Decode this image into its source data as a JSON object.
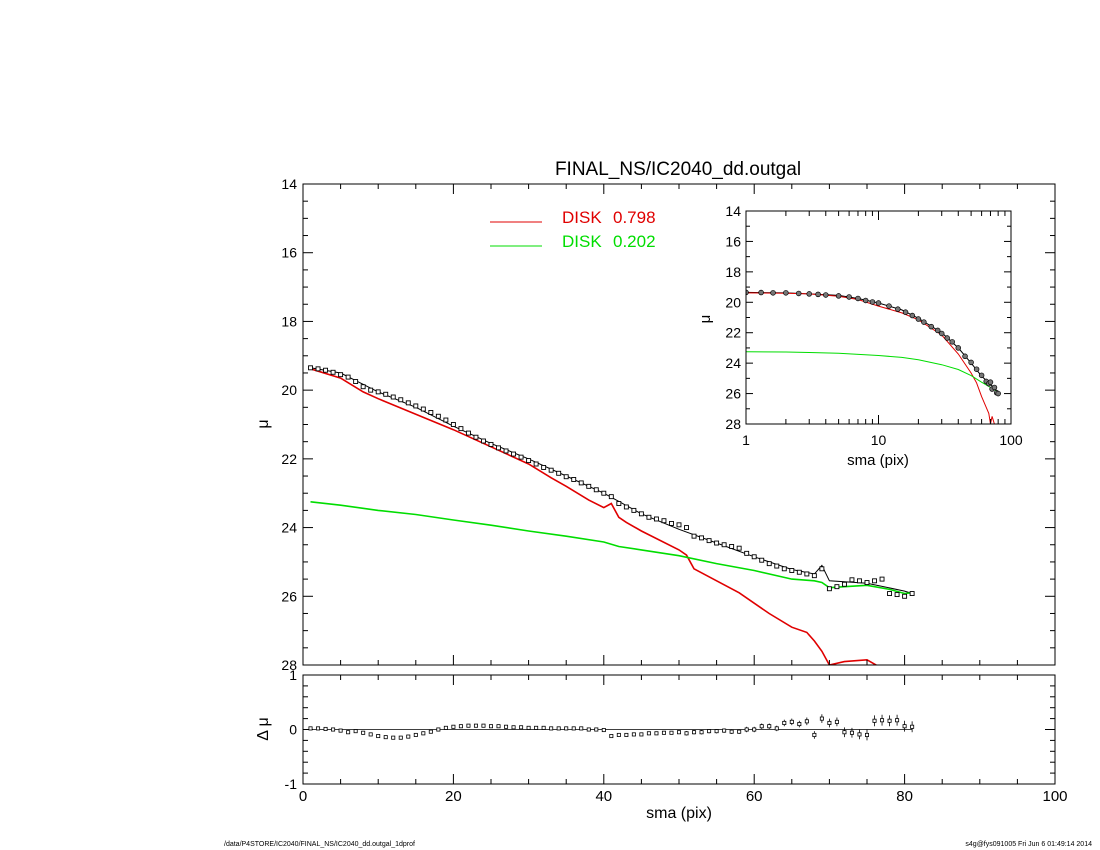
{
  "footer": {
    "path": "/data/P4STORE/IC2040/FINAL_NS/IC2040_dd.outgal_1dprof",
    "stamp": "s4g@fys091005  Fri Jun  6 01:49:14 2014"
  },
  "colors": {
    "total": "#000000",
    "disk1": "#e00000",
    "disk2": "#00dd00",
    "data_marker": "#000000"
  },
  "chart_data": [
    {
      "type": "line",
      "title": "FINAL_NS/IC2040_dd.outgal",
      "xlabel": "",
      "ylabel": "μ",
      "xlim": [
        0,
        100
      ],
      "ylim": [
        28,
        14
      ],
      "y_inverted": true,
      "xticks": [
        0,
        20,
        40,
        60,
        80,
        100
      ],
      "yticks": [
        14,
        16,
        18,
        20,
        22,
        24,
        26,
        28
      ],
      "legend": [
        {
          "label": "DISK",
          "value": "0.798",
          "color": "#e00000"
        },
        {
          "label": "DISK",
          "value": "0.202",
          "color": "#00dd00"
        }
      ],
      "legend_position": "top-center",
      "series": [
        {
          "name": "data",
          "style": "markers",
          "x": [
            1,
            2,
            3,
            4,
            5,
            6,
            7,
            8,
            9,
            10,
            11,
            12,
            13,
            14,
            15,
            16,
            17,
            18,
            19,
            20,
            21,
            22,
            23,
            24,
            25,
            26,
            27,
            28,
            29,
            30,
            31,
            32,
            33,
            34,
            35,
            36,
            37,
            38,
            39,
            40,
            41,
            42,
            43,
            44,
            45,
            46,
            47,
            48,
            49,
            50,
            51,
            52,
            53,
            54,
            55,
            56,
            57,
            58,
            59,
            60,
            61,
            62,
            63,
            64,
            65,
            66,
            67,
            68,
            69,
            70,
            71,
            72,
            73,
            74,
            75,
            76,
            77,
            78,
            79,
            80,
            81
          ],
          "y": [
            19.35,
            19.38,
            19.42,
            19.48,
            19.55,
            19.62,
            19.75,
            19.9,
            20.0,
            20.05,
            20.12,
            20.2,
            20.28,
            20.37,
            20.46,
            20.55,
            20.65,
            20.76,
            20.87,
            21.0,
            21.12,
            21.25,
            21.37,
            21.48,
            21.58,
            21.68,
            21.77,
            21.86,
            21.95,
            22.05,
            22.15,
            22.25,
            22.33,
            22.42,
            22.52,
            22.6,
            22.7,
            22.8,
            22.9,
            23.0,
            23.1,
            23.3,
            23.4,
            23.5,
            23.6,
            23.7,
            23.75,
            23.8,
            23.88,
            23.92,
            24.0,
            24.25,
            24.3,
            24.38,
            24.45,
            24.5,
            24.55,
            24.6,
            24.75,
            24.85,
            24.95,
            25.05,
            25.12,
            25.2,
            25.25,
            25.3,
            25.35,
            25.4,
            25.2,
            25.78,
            25.72,
            25.65,
            25.52,
            25.55,
            25.6,
            25.55,
            25.5,
            25.92,
            25.95,
            26.0,
            25.92
          ]
        },
        {
          "name": "total",
          "style": "line",
          "x": [
            1,
            5,
            10,
            15,
            20,
            25,
            30,
            35,
            40,
            45,
            50,
            55,
            60,
            65,
            68,
            69,
            70,
            75,
            80,
            81
          ],
          "y": [
            19.35,
            19.5,
            20.05,
            20.5,
            21.05,
            21.55,
            22.0,
            22.5,
            23.0,
            23.6,
            24.05,
            24.45,
            24.85,
            25.22,
            25.35,
            25.1,
            25.55,
            25.62,
            25.85,
            25.92
          ]
        },
        {
          "name": "disk1",
          "style": "line",
          "x": [
            1,
            5,
            8,
            10,
            15,
            20,
            25,
            30,
            33,
            35,
            38,
            40,
            41,
            42,
            43,
            45,
            50,
            51,
            52,
            55,
            58,
            60,
            62,
            65,
            67,
            68,
            69,
            70,
            72,
            75,
            77
          ],
          "y": [
            19.38,
            19.65,
            20.05,
            20.25,
            20.7,
            21.15,
            21.65,
            22.15,
            22.55,
            22.8,
            23.2,
            23.42,
            23.3,
            23.7,
            23.85,
            24.1,
            24.65,
            24.8,
            25.2,
            25.55,
            25.9,
            26.2,
            26.5,
            26.9,
            27.05,
            27.3,
            27.6,
            28.0,
            27.9,
            27.85,
            28.1
          ]
        },
        {
          "name": "disk2",
          "style": "line",
          "x": [
            1,
            5,
            10,
            15,
            20,
            25,
            30,
            35,
            40,
            42,
            45,
            50,
            55,
            60,
            65,
            68,
            69,
            70,
            72,
            75,
            78,
            80,
            81
          ],
          "y": [
            23.25,
            23.35,
            23.5,
            23.62,
            23.78,
            23.93,
            24.1,
            24.25,
            24.42,
            24.55,
            24.65,
            24.82,
            25.05,
            25.25,
            25.5,
            25.55,
            25.6,
            25.75,
            25.72,
            25.68,
            25.8,
            25.92,
            25.9
          ]
        }
      ]
    },
    {
      "type": "line",
      "title": "",
      "xlabel": "sma (pix)",
      "ylabel": "μ",
      "xscale": "log",
      "xlim": [
        1,
        100
      ],
      "ylim": [
        28,
        14
      ],
      "y_inverted": true,
      "xticks": [
        1,
        10,
        100
      ],
      "yticks": [
        14,
        16,
        18,
        20,
        22,
        24,
        26,
        28
      ],
      "series": [
        {
          "name": "data",
          "style": "markers",
          "x": [
            1,
            1.3,
            1.6,
            2,
            2.5,
            3,
            3.5,
            4,
            5,
            6,
            7,
            8,
            9,
            10,
            12,
            14,
            16,
            18,
            20,
            22,
            25,
            28,
            30,
            33,
            36,
            40,
            45,
            50,
            55,
            60,
            65,
            68,
            70,
            72,
            75,
            78,
            80
          ],
          "y": [
            19.35,
            19.36,
            19.38,
            19.38,
            19.42,
            19.45,
            19.48,
            19.52,
            19.58,
            19.65,
            19.75,
            19.88,
            19.98,
            20.05,
            20.25,
            20.45,
            20.65,
            20.87,
            21.1,
            21.3,
            21.6,
            21.85,
            22.05,
            22.35,
            22.6,
            23.0,
            23.55,
            23.95,
            24.4,
            24.8,
            25.2,
            25.35,
            25.25,
            25.7,
            25.6,
            25.95,
            26.0
          ]
        },
        {
          "name": "total",
          "style": "line",
          "x": [
            1,
            2,
            3,
            5,
            7,
            10,
            15,
            20,
            30,
            40,
            50,
            60,
            70,
            80
          ],
          "y": [
            19.35,
            19.38,
            19.45,
            19.55,
            19.75,
            20.05,
            20.5,
            21.05,
            22.0,
            23.0,
            24.0,
            24.85,
            25.4,
            25.9
          ]
        },
        {
          "name": "disk1",
          "style": "line",
          "x": [
            1,
            2,
            3,
            5,
            7,
            10,
            15,
            20,
            30,
            40,
            50,
            55,
            60,
            65,
            68,
            70,
            72,
            75,
            80
          ],
          "y": [
            19.38,
            19.4,
            19.45,
            19.6,
            19.82,
            20.25,
            20.7,
            21.15,
            22.15,
            23.4,
            24.65,
            25.3,
            26.2,
            26.9,
            27.3,
            28.0,
            27.5,
            28.0,
            28.3
          ]
        },
        {
          "name": "disk2",
          "style": "line",
          "x": [
            1,
            2,
            3,
            5,
            10,
            15,
            20,
            30,
            40,
            50,
            60,
            70,
            80
          ],
          "y": [
            23.25,
            23.27,
            23.3,
            23.35,
            23.5,
            23.62,
            23.78,
            24.1,
            24.42,
            24.82,
            25.25,
            25.6,
            25.9
          ]
        }
      ]
    },
    {
      "type": "scatter",
      "title": "",
      "xlabel": "sma (pix)",
      "ylabel": "Δ μ",
      "xlim": [
        0,
        100
      ],
      "ylim": [
        -1,
        1
      ],
      "xticks": [
        0,
        20,
        40,
        60,
        80,
        100
      ],
      "yticks": [
        -1,
        0,
        1
      ],
      "reference_line": 0,
      "series": [
        {
          "name": "residual",
          "x": [
            1,
            2,
            3,
            4,
            5,
            6,
            7,
            8,
            9,
            10,
            11,
            12,
            13,
            14,
            15,
            16,
            17,
            18,
            19,
            20,
            21,
            22,
            23,
            24,
            25,
            26,
            27,
            28,
            29,
            30,
            31,
            32,
            33,
            34,
            35,
            36,
            37,
            38,
            39,
            40,
            41,
            42,
            43,
            44,
            45,
            46,
            47,
            48,
            49,
            50,
            51,
            52,
            53,
            54,
            55,
            56,
            57,
            58,
            59,
            60,
            61,
            62,
            63,
            64,
            65,
            66,
            67,
            68,
            69,
            70,
            71,
            72,
            73,
            74,
            75,
            76,
            77,
            78,
            79,
            80,
            81
          ],
          "y": [
            0.02,
            0.02,
            0.01,
            0.0,
            -0.02,
            -0.05,
            -0.03,
            -0.06,
            -0.09,
            -0.12,
            -0.14,
            -0.15,
            -0.15,
            -0.13,
            -0.1,
            -0.07,
            -0.04,
            0.0,
            0.03,
            0.05,
            0.06,
            0.07,
            0.07,
            0.07,
            0.06,
            0.06,
            0.05,
            0.04,
            0.04,
            0.03,
            0.03,
            0.03,
            0.02,
            0.02,
            0.02,
            0.02,
            0.02,
            0.0,
            0.0,
            -0.01,
            -0.12,
            -0.1,
            -0.1,
            -0.09,
            -0.09,
            -0.07,
            -0.07,
            -0.06,
            -0.06,
            -0.05,
            -0.07,
            -0.05,
            -0.05,
            -0.03,
            -0.03,
            -0.02,
            -0.04,
            -0.04,
            0.0,
            0.0,
            0.06,
            0.06,
            0.02,
            0.12,
            0.14,
            0.1,
            0.15,
            -0.1,
            0.2,
            0.12,
            0.14,
            -0.05,
            -0.06,
            -0.09,
            -0.1,
            0.16,
            0.17,
            0.16,
            0.17,
            0.06,
            0.05
          ],
          "err": [
            0.01,
            0.01,
            0.01,
            0.01,
            0.01,
            0.01,
            0.01,
            0.01,
            0.01,
            0.01,
            0.01,
            0.01,
            0.01,
            0.01,
            0.01,
            0.01,
            0.01,
            0.01,
            0.01,
            0.01,
            0.01,
            0.01,
            0.01,
            0.01,
            0.01,
            0.01,
            0.01,
            0.01,
            0.01,
            0.01,
            0.02,
            0.02,
            0.02,
            0.02,
            0.02,
            0.02,
            0.02,
            0.02,
            0.02,
            0.02,
            0.03,
            0.03,
            0.03,
            0.03,
            0.03,
            0.03,
            0.03,
            0.03,
            0.03,
            0.03,
            0.04,
            0.04,
            0.04,
            0.04,
            0.04,
            0.04,
            0.04,
            0.04,
            0.05,
            0.05,
            0.05,
            0.05,
            0.05,
            0.06,
            0.06,
            0.06,
            0.07,
            0.07,
            0.08,
            0.08,
            0.08,
            0.09,
            0.09,
            0.09,
            0.1,
            0.1,
            0.1,
            0.1,
            0.1,
            0.1,
            0.1
          ]
        }
      ]
    }
  ]
}
